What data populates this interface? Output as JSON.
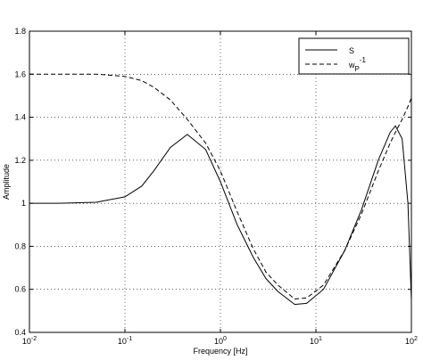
{
  "chart_data": {
    "type": "line",
    "xlabel": "Frequency [Hz]",
    "ylabel": "Amplitude",
    "x": [
      0.01,
      0.02,
      0.05,
      0.1,
      0.15,
      0.2,
      0.3,
      0.45,
      0.7,
      1,
      1.5,
      2.2,
      3,
      4,
      6,
      8,
      12,
      20,
      30,
      45,
      60,
      68,
      80,
      92,
      100
    ],
    "series": [
      {
        "name": "S",
        "color": "#000000",
        "dash": false,
        "values": [
          1.0,
          1.0,
          1.005,
          1.03,
          1.08,
          1.15,
          1.26,
          1.32,
          1.25,
          1.1,
          0.9,
          0.75,
          0.65,
          0.59,
          0.53,
          0.535,
          0.6,
          0.78,
          0.97,
          1.2,
          1.33,
          1.36,
          1.3,
          1.0,
          0.55
        ]
      },
      {
        "name": "w",
        "name_sub": "P",
        "name_sup": "-1",
        "color": "#000000",
        "dash": true,
        "values": [
          1.6,
          1.6,
          1.6,
          1.59,
          1.57,
          1.54,
          1.48,
          1.39,
          1.28,
          1.15,
          0.96,
          0.79,
          0.68,
          0.62,
          0.555,
          0.56,
          0.62,
          0.78,
          0.95,
          1.15,
          1.28,
          1.33,
          1.39,
          1.45,
          1.49
        ]
      }
    ],
    "xscale": "log",
    "xlim": [
      0.01,
      100
    ],
    "xticks": [
      {
        "value": 0.01,
        "label": "10",
        "exponent": "-2"
      },
      {
        "value": 0.1,
        "label": "10",
        "exponent": "-1"
      },
      {
        "value": 1,
        "label": "10",
        "exponent": "0"
      },
      {
        "value": 10,
        "label": "10",
        "exponent": "1"
      },
      {
        "value": 100,
        "label": "10",
        "exponent": "2"
      }
    ],
    "ylim": [
      0.4,
      1.8
    ],
    "yticks": [
      0.4,
      0.6,
      0.8,
      1,
      1.2,
      1.4,
      1.6,
      1.8
    ],
    "grid": true,
    "legend": "upper right"
  }
}
